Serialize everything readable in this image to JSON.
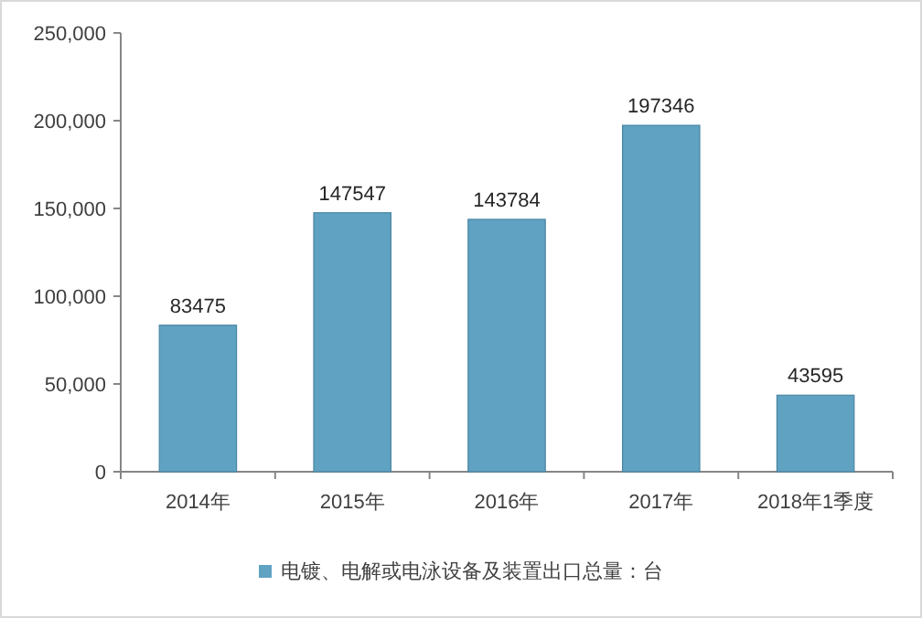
{
  "chart_data": {
    "type": "bar",
    "categories": [
      "2014年",
      "2015年",
      "2016年",
      "2017年",
      "2018年1季度"
    ],
    "series": [
      {
        "name": "电镀、电解或电泳设备及装置出口总量：台",
        "color": "#5fa2c2",
        "values": [
          83475,
          147547,
          143784,
          197346,
          43595
        ]
      }
    ],
    "ylim": [
      0,
      250000
    ],
    "yticks": [
      0,
      {
        "value": 50000,
        "label": "50,000"
      },
      {
        "value": 100000,
        "label": "100,000"
      },
      {
        "value": 150000,
        "label": "150,000"
      },
      {
        "value": 200000,
        "label": "200,000"
      },
      {
        "value": 250000,
        "label": "250,000"
      }
    ],
    "data_labels": true,
    "legend": "bottom",
    "grid": false
  }
}
